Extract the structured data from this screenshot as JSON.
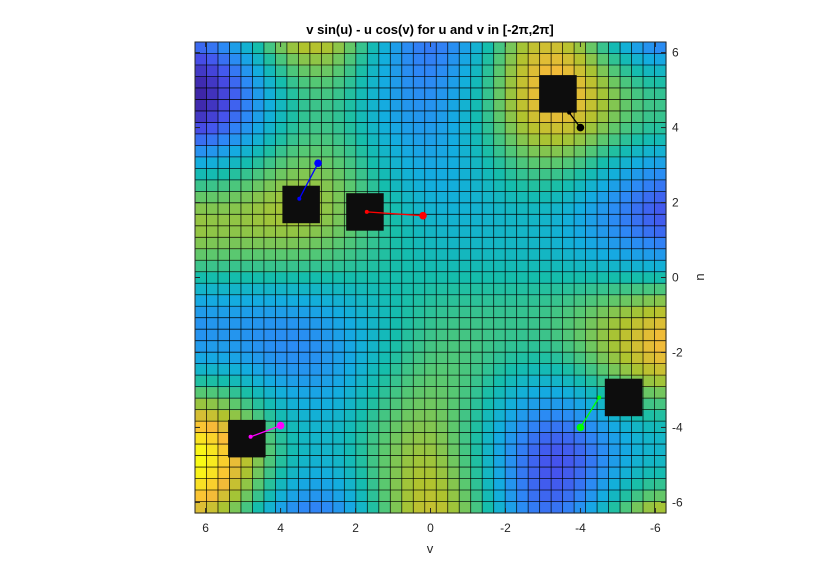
{
  "chart_data": {
    "type": "heatmap",
    "title": "v sin(u) - u cos(v) for u and v in [-2π,2π]",
    "xlabel": "v",
    "ylabel": "u",
    "function": "v sin(u) - u cos(v)",
    "xlim": [
      6.283,
      -6.283
    ],
    "ylim": [
      -6.283,
      6.283
    ],
    "x_direction": "reversed",
    "y_axis_location": "right",
    "xticks": [
      6,
      4,
      2,
      0,
      -2,
      -4,
      -6
    ],
    "xtick_labels": [
      "6",
      "4",
      "2",
      "0",
      "-2",
      "-4",
      "-6"
    ],
    "yticks": [
      6,
      4,
      2,
      0,
      -2,
      -4,
      -6
    ],
    "ytick_labels": [
      "6",
      "4",
      "2",
      "0",
      "-2",
      "-4",
      "-6"
    ],
    "grid": true,
    "grid_divisions": 41,
    "colormap": "parula",
    "grid_color": "#000000",
    "obstacles": [
      {
        "name": "obstacle-1",
        "v": -3.4,
        "u": 4.9,
        "size": 1.0
      },
      {
        "name": "obstacle-2",
        "v": 3.45,
        "u": 1.95,
        "size": 1.0
      },
      {
        "name": "obstacle-3",
        "v": 1.75,
        "u": 1.75,
        "size": 1.0
      },
      {
        "name": "obstacle-4",
        "v": -5.15,
        "u": -3.2,
        "size": 1.0
      },
      {
        "name": "obstacle-5",
        "v": 4.9,
        "u": -4.3,
        "size": 1.0
      }
    ],
    "series": [
      {
        "color": "#000000",
        "points": [
          {
            "v": -3.7,
            "u": 4.4
          },
          {
            "v": -4.0,
            "u": 4.0
          }
        ]
      },
      {
        "color": "#0000ff",
        "points": [
          {
            "v": 3.5,
            "u": 2.1
          },
          {
            "v": 3.0,
            "u": 3.05
          }
        ]
      },
      {
        "color": "#ff0000",
        "points": [
          {
            "v": 1.7,
            "u": 1.75
          },
          {
            "v": 0.2,
            "u": 1.65
          }
        ]
      },
      {
        "color": "#00ff00",
        "points": [
          {
            "v": -4.5,
            "u": -3.2
          },
          {
            "v": -4.0,
            "u": -4.0
          }
        ]
      },
      {
        "color": "#ff00ff",
        "points": [
          {
            "v": 4.8,
            "u": -4.25
          },
          {
            "v": 4.0,
            "u": -3.95
          }
        ]
      }
    ]
  }
}
